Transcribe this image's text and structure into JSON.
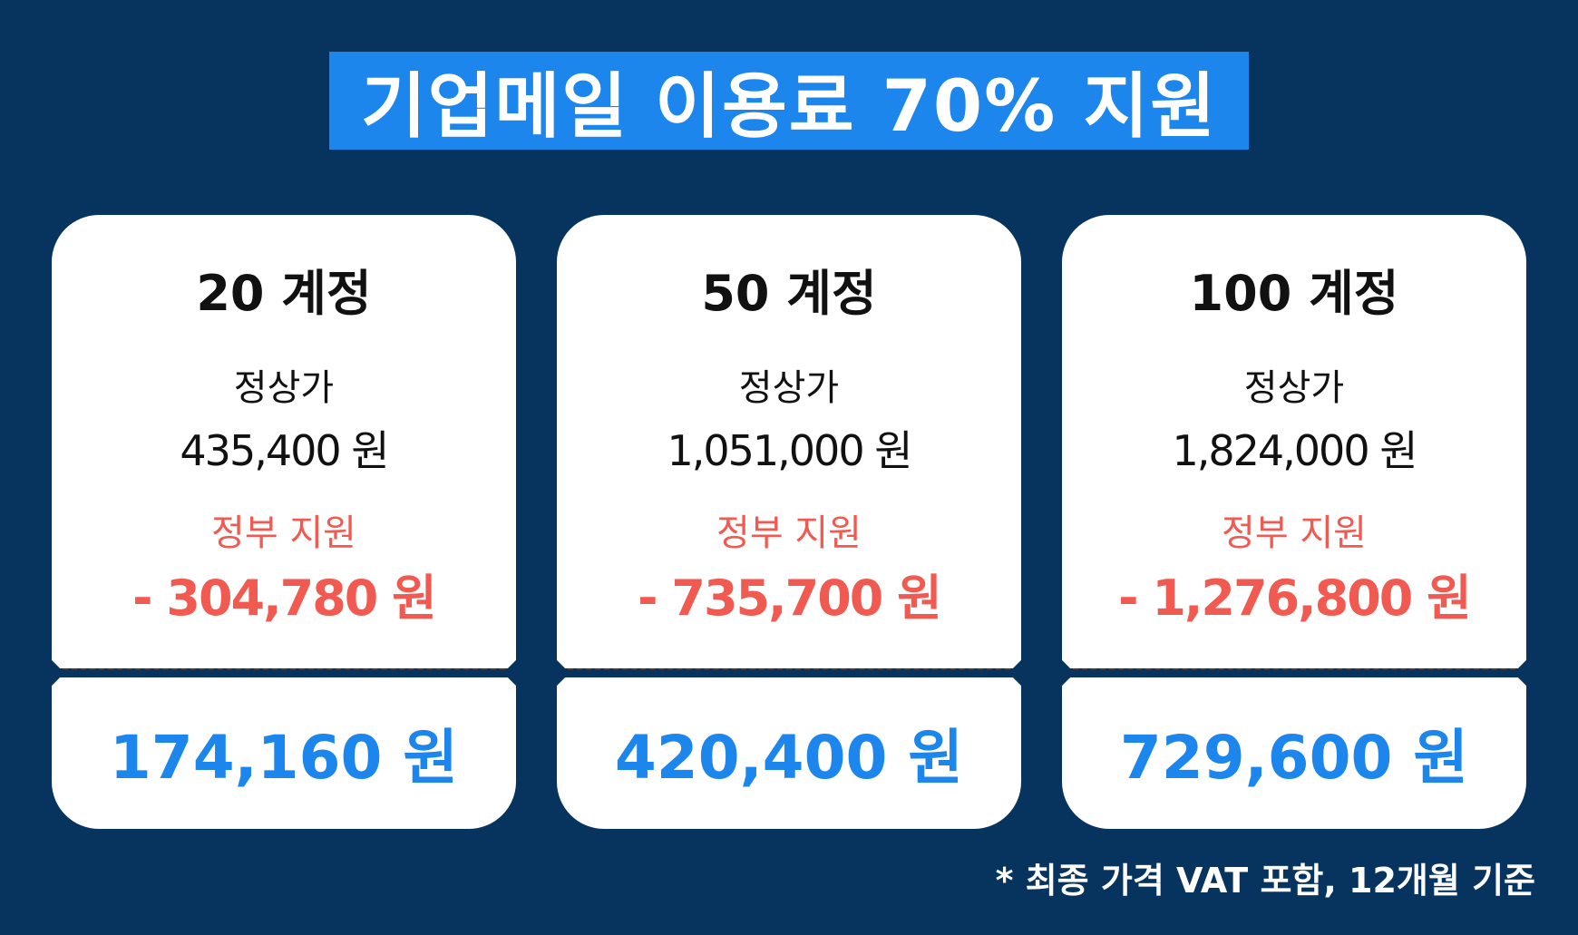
{
  "title": "기업메일 이용료 70% 지원",
  "plans": [
    {
      "name": "20 계정",
      "list_label": "정상가",
      "list_price": "435,400 원",
      "subsidy_label": "정부 지원",
      "subsidy": "- 304,780 원",
      "final_price": "174,160 원"
    },
    {
      "name": "50 계정",
      "list_label": "정상가",
      "list_price": "1,051,000 원",
      "subsidy_label": "정부 지원",
      "subsidy": "- 735,700 원",
      "final_price": "420,400 원"
    },
    {
      "name": "100 계정",
      "list_label": "정상가",
      "list_price": "1,824,000 원",
      "subsidy_label": "정부 지원",
      "subsidy": "- 1,276,800 원",
      "final_price": "729,600 원"
    }
  ],
  "footnote": "* 최종 가격 VAT 포함, 12개월 기준",
  "colors": {
    "background": "#07335f",
    "accent_blue": "#1c86ec",
    "subsidy_red": "#f15a50",
    "card": "#ffffff"
  }
}
